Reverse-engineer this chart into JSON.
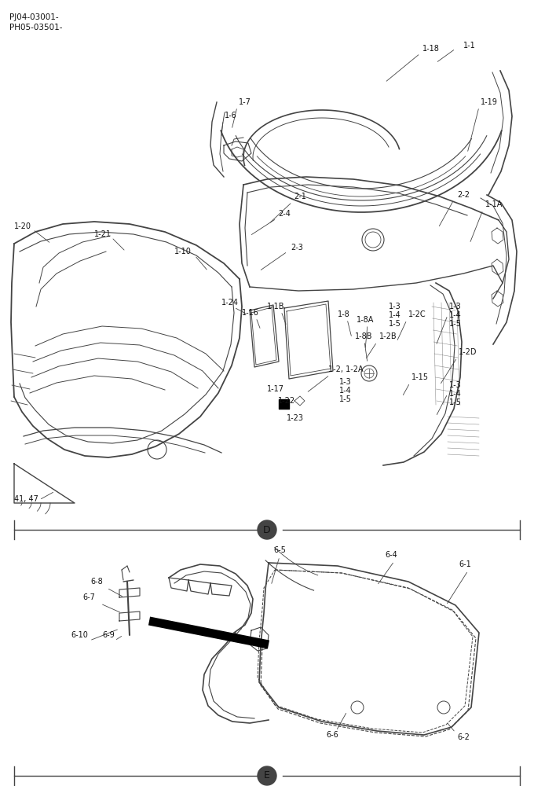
{
  "bg_color": "#ffffff",
  "line_color": "#444444",
  "text_color": "#111111",
  "header": [
    "PJ04-03001-",
    "PH05-03501-"
  ],
  "section_D_label": "D",
  "section_E_label": "E",
  "fig_width": 6.8,
  "fig_height": 10.0,
  "dpi": 100,
  "fs_label": 7.0,
  "fs_header": 7.5
}
